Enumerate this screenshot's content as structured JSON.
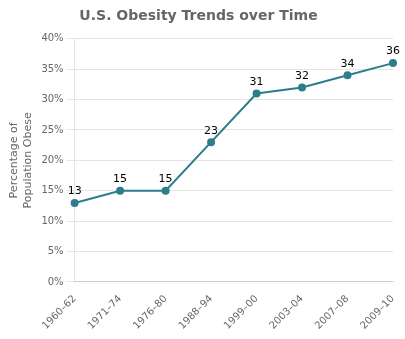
{
  "chart_data": {
    "type": "line",
    "title": "U.S. Obesity Trends over Time",
    "ylabel": "Percentage of\nPopulation Obese",
    "categories": [
      "1960–62",
      "1971–74",
      "1976–80",
      "1988–94",
      "1999–00",
      "2003–04",
      "2007–08",
      "2009–10"
    ],
    "values": [
      13,
      15,
      15,
      23,
      31,
      32,
      34,
      36
    ],
    "color": "#2e7d8c",
    "marker": "circle",
    "ylim": [
      0,
      40
    ],
    "yticks": [
      {
        "value": 0,
        "label": "0%"
      },
      {
        "value": 5,
        "label": "5%"
      },
      {
        "value": 10,
        "label": "10%"
      },
      {
        "value": 15,
        "label": "15%"
      },
      {
        "value": 20,
        "label": "20%"
      },
      {
        "value": 25,
        "label": "25%"
      },
      {
        "value": 30,
        "label": "30%"
      },
      {
        "value": 35,
        "label": "35%"
      },
      {
        "value": 40,
        "label": "40%"
      }
    ],
    "grid": true,
    "data_labels": true
  }
}
